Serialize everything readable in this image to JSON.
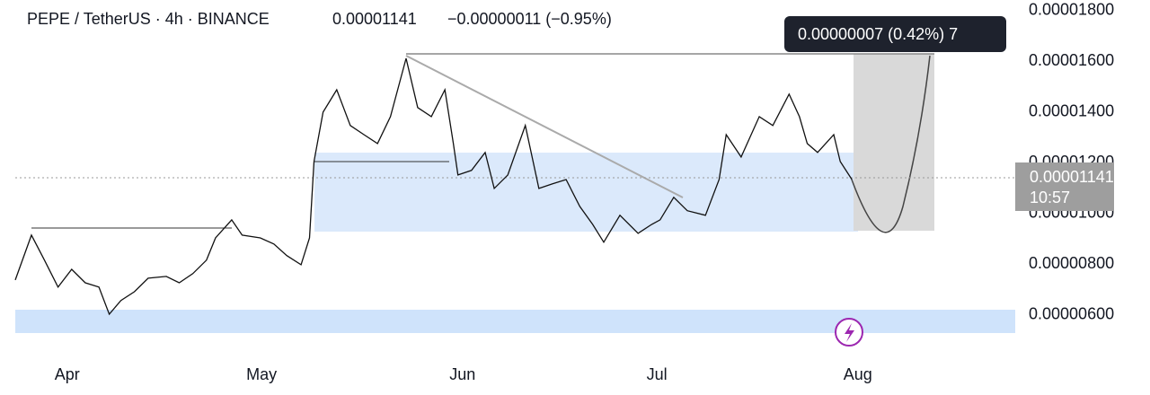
{
  "chart_data": {
    "type": "line",
    "title": "PEPE / TetherUS · 4h · BINANCE",
    "last_price": 1.141e-05,
    "change": "−0.00000011 (−0.95%)",
    "tooltip": "0.00000007 (0.42%) 7",
    "countdown": "10:57",
    "color": "#111111",
    "x": [
      23.0,
      25.5,
      27.5,
      29.6,
      31.7,
      33.8,
      35.9,
      37.5,
      39.3,
      41.4,
      43.5,
      46.3,
      48.3,
      50.4,
      52.5,
      53.9,
      56.4,
      58.0,
      60.8,
      62.9,
      64.9,
      67.1,
      68.4,
      69.1,
      70.5,
      72.6,
      74.7,
      76.8,
      78.9,
      80.9,
      83.3,
      85.1,
      87.2,
      89.3,
      90.6,
      91.3,
      93.4,
      95.5,
      96.9,
      99.0,
      101.7,
      103.8,
      105.9,
      108.0,
      110.1,
      112.1,
      113.8,
      116.3,
      119.1,
      121.2,
      122.5,
      124.6,
      126.7,
      129.5,
      131.6,
      132.7,
      135.0,
      137.8,
      139.9,
      142.4,
      144.0,
      145.2,
      146.8,
      149.3,
      150.3,
      152.1
    ],
    "values": [
      7.38e-06,
      9.15e-06,
      8.16e-06,
      7.1e-06,
      7.8e-06,
      7.27e-06,
      7.1e-06,
      6.03e-06,
      6.57e-06,
      6.92e-06,
      7.45e-06,
      7.52e-06,
      7.27e-06,
      7.63e-06,
      8.16e-06,
      9.04e-06,
      9.75e-06,
      9.15e-06,
      9.04e-06,
      8.8e-06,
      8.34e-06,
      7.98e-06,
      9.04e-06,
      1.205e-05,
      1.4e-05,
      1.488e-05,
      1.347e-05,
      1.311e-05,
      1.276e-05,
      1.382e-05,
      1.612e-05,
      1.418e-05,
      1.382e-05,
      1.488e-05,
      1.276e-05,
      1.152e-05,
      1.17e-05,
      1.241e-05,
      1.099e-05,
      1.152e-05,
      1.347e-05,
      1.099e-05,
      1.117e-05,
      1.134e-05,
      1.028e-05,
      9.57e-06,
      8.87e-06,
      9.93e-06,
      9.22e-06,
      9.57e-06,
      9.75e-06,
      1.064e-05,
      1.011e-05,
      9.93e-06,
      1.134e-05,
      1.311e-05,
      1.223e-05,
      1.382e-05,
      1.347e-05,
      1.471e-05,
      1.382e-05,
      1.276e-05,
      1.241e-05,
      1.311e-05,
      1.205e-05,
      1.134e-05
    ],
    "xlim": [
      23,
      177.3
    ],
    "xticks": [
      {
        "value": 31,
        "label": "Apr"
      },
      {
        "value": 61,
        "label": "May"
      },
      {
        "value": 92,
        "label": "Jun"
      },
      {
        "value": 122,
        "label": "Jul"
      },
      {
        "value": 153,
        "label": "Aug"
      }
    ],
    "ylim": [
      4.26e-06,
      1.842e-05
    ],
    "yticks": [
      {
        "value": 6e-06,
        "label": "0.00000600"
      },
      {
        "value": 8e-06,
        "label": "0.00000800"
      },
      {
        "value": 1e-05,
        "label": "0.00001000"
      },
      {
        "value": 1.2e-05,
        "label": "0.00001200"
      },
      {
        "value": 1.4e-05,
        "label": "0.00001400"
      },
      {
        "value": 1.6e-05,
        "label": "0.00001600"
      },
      {
        "value": 1.8e-05,
        "label": "0.00001800"
      }
    ]
  }
}
